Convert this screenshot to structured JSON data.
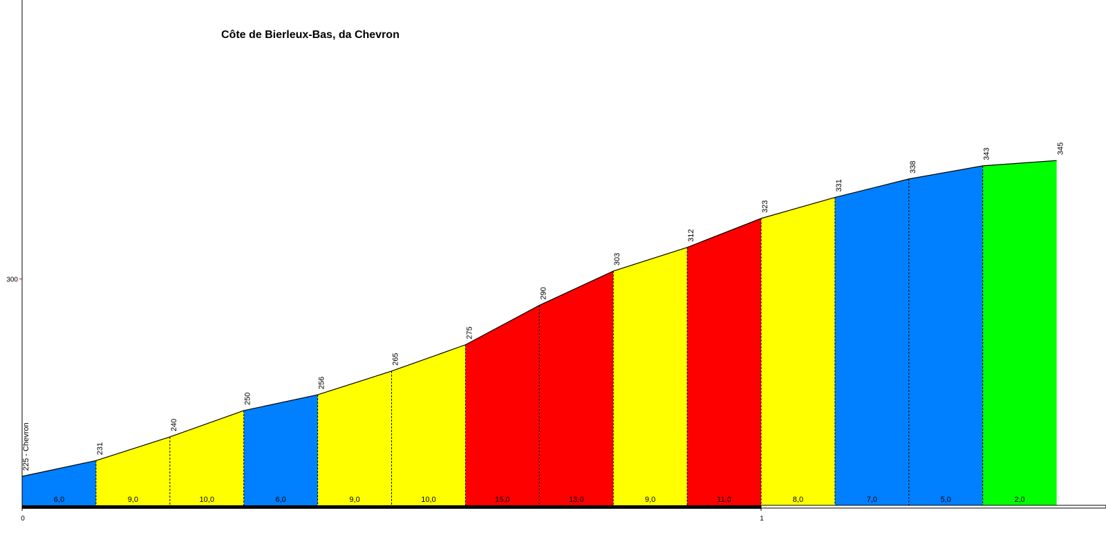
{
  "chart_data": {
    "type": "area",
    "title": "Côte de Bierleux-Bas, da Chevron",
    "xlabel": "",
    "ylabel": "",
    "xlim": [
      0,
      1.47
    ],
    "ylim": [
      214,
      406
    ],
    "y_ticks": [
      300
    ],
    "x_ticks": [
      0,
      1
    ],
    "grid": false,
    "points": [
      {
        "x": 0.0,
        "elev": 225,
        "label": "225 - Chevron"
      },
      {
        "x": 0.1,
        "elev": 231,
        "label": "231"
      },
      {
        "x": 0.2,
        "elev": 240,
        "label": "240"
      },
      {
        "x": 0.3,
        "elev": 250,
        "label": "250"
      },
      {
        "x": 0.4,
        "elev": 256,
        "label": "256"
      },
      {
        "x": 0.5,
        "elev": 265,
        "label": "265"
      },
      {
        "x": 0.6,
        "elev": 275,
        "label": "275"
      },
      {
        "x": 0.7,
        "elev": 290,
        "label": "290"
      },
      {
        "x": 0.8,
        "elev": 303,
        "label": "303"
      },
      {
        "x": 0.9,
        "elev": 312,
        "label": "312"
      },
      {
        "x": 1.0,
        "elev": 323,
        "label": "323"
      },
      {
        "x": 1.1,
        "elev": 331,
        "label": "331"
      },
      {
        "x": 1.2,
        "elev": 338,
        "label": "338"
      },
      {
        "x": 1.3,
        "elev": 343,
        "label": "343"
      },
      {
        "x": 1.4,
        "elev": 345,
        "label": "345"
      }
    ],
    "segments": [
      {
        "grade": "6,0",
        "color": "#0080ff"
      },
      {
        "grade": "9,0",
        "color": "#ffff00"
      },
      {
        "grade": "10,0",
        "color": "#ffff00"
      },
      {
        "grade": "6,0",
        "color": "#0080ff"
      },
      {
        "grade": "9,0",
        "color": "#ffff00"
      },
      {
        "grade": "10,0",
        "color": "#ffff00"
      },
      {
        "grade": "15,0",
        "color": "#ff0000"
      },
      {
        "grade": "13,0",
        "color": "#ff0000"
      },
      {
        "grade": "9,0",
        "color": "#ffff00"
      },
      {
        "grade": "11,0",
        "color": "#ff0000"
      },
      {
        "grade": "8,0",
        "color": "#ffff00"
      },
      {
        "grade": "7,0",
        "color": "#0080ff"
      },
      {
        "grade": "5,0",
        "color": "#0080ff"
      },
      {
        "grade": "2,0",
        "color": "#00ff00"
      }
    ]
  }
}
